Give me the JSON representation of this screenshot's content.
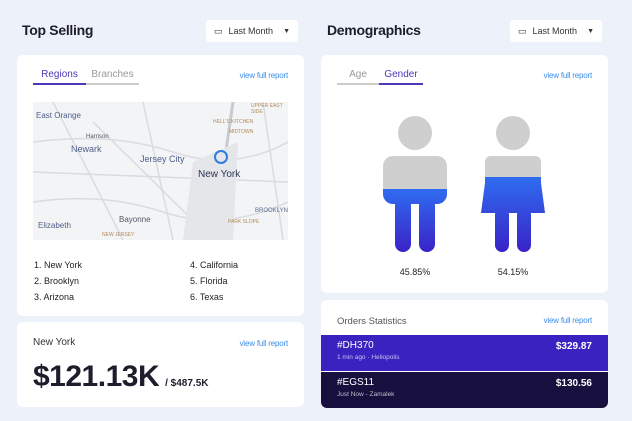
{
  "top_selling": {
    "title": "Top Selling",
    "filter": "Last Month",
    "tabs": [
      "Regions",
      "Branches"
    ],
    "active_tab": "Regions",
    "link": "view full report",
    "map_labels": [
      "East Orange",
      "Harrison",
      "Newark",
      "Jersey City",
      "New York",
      "Elizabeth",
      "Bayonne",
      "HELL'S KITCHEN",
      "MIDTOWN",
      "UPPER EAST SIDE",
      "BROOKLYN",
      "PARK SLOPE",
      "NEW JERSEY"
    ],
    "regions": [
      "1. New York",
      "2. Brooklyn",
      "3. Arizona",
      "4. California",
      "5. Florida",
      "6. Texas"
    ]
  },
  "city_card": {
    "city": "New York",
    "link": "view full report",
    "value": "$121.13K",
    "target": "/ $487.5K"
  },
  "demographics": {
    "title": "Demographics",
    "filter": "Last Month",
    "tabs": [
      "Age",
      "Gender"
    ],
    "active_tab": "Gender",
    "link": "view full report",
    "male_pct": "45.85%",
    "female_pct": "54.15%",
    "male_fill": 0.4585,
    "female_fill": 0.5415,
    "accent": "#3f2bd6"
  },
  "orders": {
    "title": "Orders Statistics",
    "link": "view full report",
    "items": [
      {
        "id": "#DH370",
        "meta": "1 min ago · Heliopolis",
        "amount": "$329.87",
        "color": "#3a22c0"
      },
      {
        "id": "#EGS11",
        "meta": "Just Now - Zamalek",
        "amount": "$130.56",
        "color": "#17103f"
      }
    ]
  }
}
